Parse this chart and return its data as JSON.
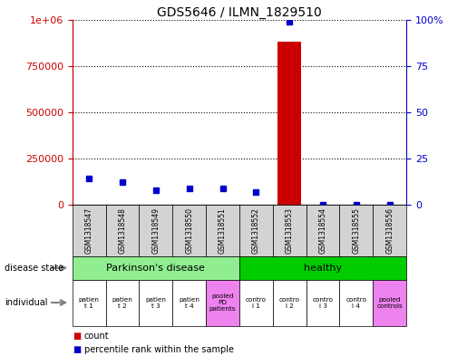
{
  "title": "GDS5646 / ILMN_1829510",
  "samples": [
    "GSM1318547",
    "GSM1318548",
    "GSM1318549",
    "GSM1318550",
    "GSM1318551",
    "GSM1318552",
    "GSM1318553",
    "GSM1318554",
    "GSM1318555",
    "GSM1318556"
  ],
  "count_values": [
    500,
    400,
    300,
    200,
    350,
    250,
    880000,
    100,
    150,
    80
  ],
  "percentile_values": [
    14,
    12,
    8,
    9,
    9,
    7,
    99,
    0,
    0,
    0
  ],
  "bar_color": "#cc0000",
  "dot_color": "#0000cc",
  "ylim_left": [
    0,
    1000000
  ],
  "ylim_right": [
    0,
    100
  ],
  "yticks_left": [
    0,
    250000,
    500000,
    750000,
    1000000
  ],
  "ytick_labels_left": [
    "0",
    "250000",
    "500000",
    "750000",
    "1e+06"
  ],
  "yticks_right": [
    0,
    25,
    50,
    75,
    100
  ],
  "ytick_labels_right": [
    "0",
    "25",
    "50",
    "75",
    "100%"
  ],
  "parkinson_color": "#90EE90",
  "healthy_color": "#00cc00",
  "individual_labels": [
    "patien\nt 1",
    "patien\nt 2",
    "patien\nt 3",
    "patien\nt 4",
    "pooled\nPD\npatients",
    "contro\nl 1",
    "contro\nl 2",
    "contro\nl 3",
    "contro\nl 4",
    "pooled\ncontrols"
  ],
  "individual_colors": [
    "#ffffff",
    "#ffffff",
    "#ffffff",
    "#ffffff",
    "#ee82ee",
    "#ffffff",
    "#ffffff",
    "#ffffff",
    "#ffffff",
    "#ee82ee"
  ],
  "sample_box_color": "#d3d3d3",
  "left_axis_color": "#cc0000",
  "right_axis_color": "#0000cc",
  "legend_count_label": "count",
  "legend_pct_label": "percentile rank within the sample"
}
